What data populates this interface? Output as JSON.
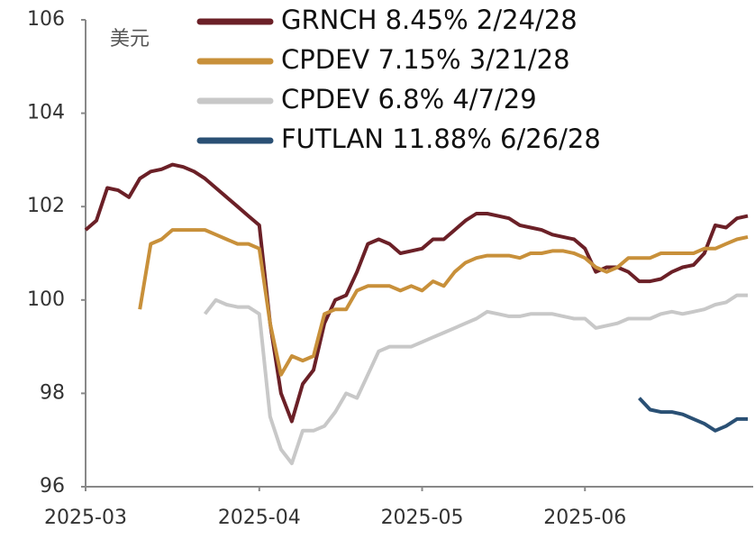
{
  "chart_data": {
    "type": "line",
    "y_label": "美元",
    "categories": [
      "2025-03",
      null,
      null,
      null,
      null,
      null,
      null,
      null,
      null,
      null,
      null,
      null,
      null,
      null,
      null,
      null,
      "2025-04",
      null,
      null,
      null,
      null,
      null,
      null,
      null,
      null,
      null,
      null,
      null,
      null,
      null,
      null,
      "2025-05",
      null,
      null,
      null,
      null,
      null,
      null,
      null,
      null,
      null,
      null,
      null,
      null,
      null,
      null,
      "2025-06",
      null,
      null,
      null,
      null,
      null,
      null,
      null,
      null,
      null,
      null,
      null,
      null,
      null,
      null,
      null
    ],
    "series": [
      {
        "name": "GRNCH 8.45% 2/24/28",
        "color": "#6b2027",
        "values": [
          101.5,
          101.7,
          102.4,
          102.35,
          102.2,
          102.6,
          102.75,
          102.8,
          102.9,
          102.85,
          102.75,
          102.6,
          102.4,
          102.2,
          102.0,
          101.8,
          101.6,
          99.5,
          98.0,
          97.4,
          98.2,
          98.5,
          99.5,
          100.0,
          100.1,
          100.6,
          101.2,
          101.3,
          101.2,
          101.0,
          101.05,
          101.1,
          101.3,
          101.3,
          101.5,
          101.7,
          101.85,
          101.85,
          101.8,
          101.75,
          101.6,
          101.55,
          101.5,
          101.4,
          101.35,
          101.3,
          101.1,
          100.6,
          100.7,
          100.7,
          100.6,
          100.4,
          100.4,
          100.45,
          100.6,
          100.7,
          100.75,
          101.0,
          101.6,
          101.55,
          101.75,
          101.8
        ]
      },
      {
        "name": "CPDEV 7.15% 3/21/28",
        "color": "#c8903a",
        "values": [
          null,
          null,
          null,
          null,
          null,
          99.8,
          101.2,
          101.3,
          101.5,
          101.5,
          101.5,
          101.5,
          101.4,
          101.3,
          101.2,
          101.2,
          101.1,
          99.5,
          98.4,
          98.8,
          98.7,
          98.8,
          99.7,
          99.8,
          99.8,
          100.2,
          100.3,
          100.3,
          100.3,
          100.2,
          100.3,
          100.2,
          100.4,
          100.3,
          100.6,
          100.8,
          100.9,
          100.95,
          100.95,
          100.95,
          100.9,
          101.0,
          101.0,
          101.05,
          101.05,
          101.0,
          100.9,
          100.7,
          100.6,
          100.7,
          100.9,
          100.9,
          100.9,
          101.0,
          101.0,
          101.0,
          101.0,
          101.1,
          101.1,
          101.2,
          101.3,
          101.35
        ]
      },
      {
        "name": "CPDEV 6.8% 4/7/29",
        "color": "#c8c8c8",
        "values": [
          null,
          null,
          null,
          null,
          null,
          null,
          null,
          null,
          null,
          null,
          null,
          99.7,
          100.0,
          99.9,
          99.85,
          99.85,
          99.7,
          97.5,
          96.8,
          96.5,
          97.2,
          97.2,
          97.3,
          97.6,
          98.0,
          97.9,
          98.4,
          98.9,
          99.0,
          99.0,
          99.0,
          99.1,
          99.2,
          99.3,
          99.4,
          99.5,
          99.6,
          99.75,
          99.7,
          99.65,
          99.65,
          99.7,
          99.7,
          99.7,
          99.65,
          99.6,
          99.6,
          99.4,
          99.45,
          99.5,
          99.6,
          99.6,
          99.6,
          99.7,
          99.75,
          99.7,
          99.75,
          99.8,
          99.9,
          99.95,
          100.1,
          100.1
        ]
      },
      {
        "name": "FUTLAN 11.88% 6/26/28",
        "color": "#2a5074",
        "values": [
          null,
          null,
          null,
          null,
          null,
          null,
          null,
          null,
          null,
          null,
          null,
          null,
          null,
          null,
          null,
          null,
          null,
          null,
          null,
          null,
          null,
          null,
          null,
          null,
          null,
          null,
          null,
          null,
          null,
          null,
          null,
          null,
          null,
          null,
          null,
          null,
          null,
          null,
          null,
          null,
          null,
          null,
          null,
          null,
          null,
          null,
          null,
          null,
          null,
          null,
          null,
          97.9,
          97.65,
          97.6,
          97.6,
          97.55,
          97.45,
          97.35,
          97.2,
          97.3,
          97.45,
          97.45
        ]
      }
    ],
    "ylim": [
      96,
      106
    ],
    "yticks": [
      96,
      98,
      100,
      102,
      104,
      106
    ]
  }
}
